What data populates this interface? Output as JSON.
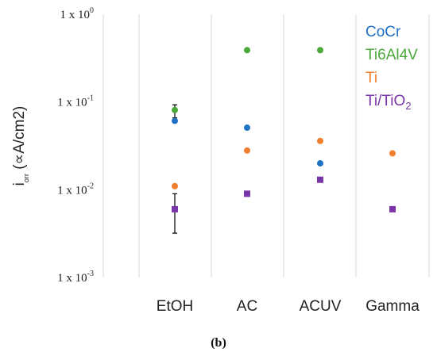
{
  "chart_data": {
    "type": "scatter",
    "categories": [
      "EtOH",
      "AC",
      "ACUV",
      "Gamma"
    ],
    "y_scale": "log",
    "ylim": [
      0.001,
      1
    ],
    "y_ticks": [
      {
        "value": 1,
        "base": "1 x 10",
        "exp": "0"
      },
      {
        "value": 0.1,
        "base": "1 x 10",
        "exp": "-1"
      },
      {
        "value": 0.01,
        "base": "1 x 10",
        "exp": "-2"
      },
      {
        "value": 0.001,
        "base": "1 x 10",
        "exp": "-3"
      }
    ],
    "ylabel": "iₒᵣᵣ (∝A/cm2)",
    "ylabel_main": "i",
    "ylabel_sub": "ₒᵣᵣ",
    "ylabel_rest": " (∝A/cm2)",
    "grid": "vertical",
    "legend_position": "top-right",
    "caption": "(b)",
    "series": [
      {
        "name": "CoCr",
        "marker": "circle",
        "color": "#1f72c4",
        "values": [
          0.061,
          0.051,
          0.02,
          null
        ]
      },
      {
        "name": "Ti6Al4V",
        "marker": "circle",
        "color": "#4aa83a",
        "values": [
          0.081,
          0.39,
          0.39,
          null
        ]
      },
      {
        "name": "Ti",
        "marker": "circle",
        "color": "#f07f2e",
        "values": [
          0.011,
          0.028,
          0.036,
          0.026
        ]
      },
      {
        "name": "Ti/TiO",
        "name_sub": "2",
        "marker": "square",
        "color": "#7a35a8",
        "values": [
          0.006,
          0.009,
          0.013,
          0.006
        ]
      }
    ],
    "error_bars": [
      {
        "series": "Ti6Al4V",
        "category": "EtOH",
        "low": 0.066,
        "high": 0.093
      },
      {
        "series": "Ti/TiO2",
        "category": "EtOH",
        "low": 0.0032,
        "high": 0.009
      }
    ]
  }
}
